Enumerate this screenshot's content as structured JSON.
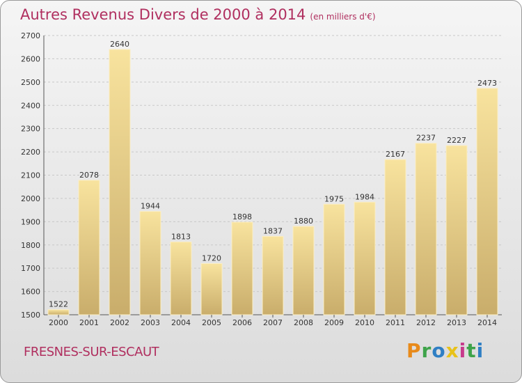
{
  "title": "Autres Revenus Divers de 2000 à 2014",
  "unit": "(en milliers d'€)",
  "commune": "FRESNES-SUR-ESCAUT",
  "logo": "Proxiti",
  "colors": {
    "bar_top": "#f8e39e",
    "bar_bottom": "#c9ad6b",
    "title": "#b02f5f",
    "grid": "#c8c8c8"
  },
  "chart_data": {
    "type": "bar",
    "title": "Autres Revenus Divers de 2000 à 2014",
    "xlabel": "",
    "ylabel": "",
    "ylim": [
      1500,
      2700
    ],
    "yticks": [
      1500,
      1600,
      1700,
      1800,
      1900,
      2000,
      2100,
      2200,
      2300,
      2400,
      2500,
      2600,
      2700
    ],
    "categories": [
      "2000",
      "2001",
      "2002",
      "2003",
      "2004",
      "2005",
      "2006",
      "2007",
      "2008",
      "2009",
      "2010",
      "2011",
      "2012",
      "2013",
      "2014"
    ],
    "values": [
      1522,
      2078,
      2640,
      1944,
      1813,
      1720,
      1898,
      1837,
      1880,
      1975,
      1984,
      2167,
      2237,
      2227,
      2473
    ],
    "grid": true,
    "legend": "none"
  }
}
